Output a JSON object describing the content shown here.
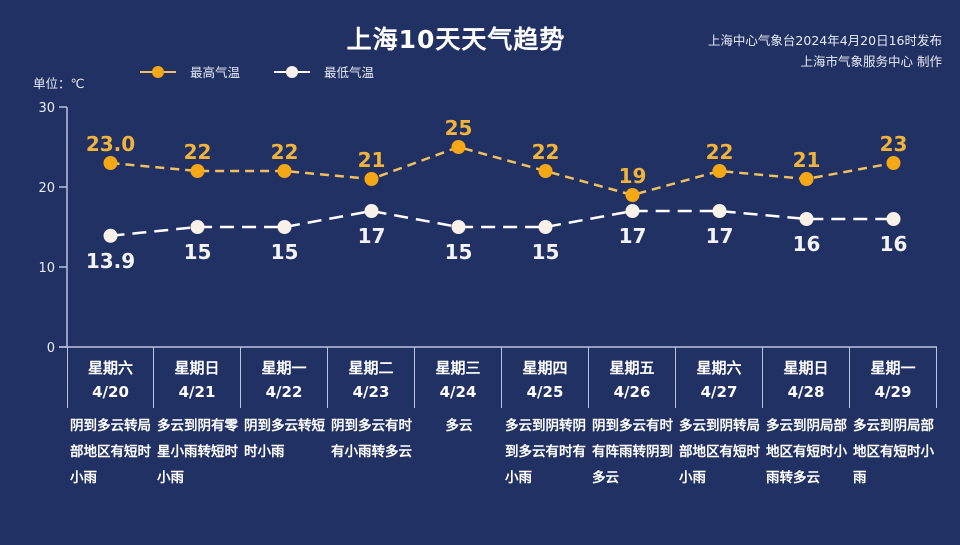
{
  "header": {
    "title": "上海10天天气趋势",
    "publisher_line1": "上海中心气象台2024年4月20日16时发布",
    "publisher_line2": "上海市气象服务中心 制作",
    "unit_label": "单位：℃"
  },
  "legend": [
    {
      "label": "最高气温",
      "color": "#f5a816",
      "icon": "orange-dot-line-icon"
    },
    {
      "label": "最低气温",
      "color": "#f8f1ea",
      "icon": "white-dot-line-icon"
    }
  ],
  "colors": {
    "background": "#223163",
    "axis": "#b9c3dc",
    "high": "#f5a816",
    "high_label": "#f0b43c",
    "low": "#f8f1ea"
  },
  "days": [
    {
      "weekday": "星期六",
      "date": "4/20",
      "desc": "阴到多云转局部地区有短时小雨"
    },
    {
      "weekday": "星期日",
      "date": "4/21",
      "desc": "多云到阴有零星小雨转短时小雨"
    },
    {
      "weekday": "星期一",
      "date": "4/22",
      "desc": "阴到多云转短时小雨"
    },
    {
      "weekday": "星期二",
      "date": "4/23",
      "desc": "阴到多云有时有小雨转多云"
    },
    {
      "weekday": "星期三",
      "date": "4/24",
      "desc": "多云"
    },
    {
      "weekday": "星期四",
      "date": "4/25",
      "desc": "多云到阴转阴到多云有时有小雨"
    },
    {
      "weekday": "星期五",
      "date": "4/26",
      "desc": "阴到多云有时有阵雨转阴到多云"
    },
    {
      "weekday": "星期六",
      "date": "4/27",
      "desc": "多云到阴转局部地区有短时小雨"
    },
    {
      "weekday": "星期日",
      "date": "4/28",
      "desc": "多云到阴局部地区有短时小雨转多云"
    },
    {
      "weekday": "星期一",
      "date": "4/29",
      "desc": "多云到阴局部地区有短时小雨"
    }
  ],
  "chart_data": {
    "type": "line",
    "title": "上海10天天气趋势",
    "xlabel": "",
    "ylabel": "单位：℃",
    "ylim": [
      0,
      30
    ],
    "yticks": [
      0,
      10,
      20,
      30
    ],
    "grid": false,
    "legend_position": "top",
    "categories": [
      "4/20",
      "4/21",
      "4/22",
      "4/23",
      "4/24",
      "4/25",
      "4/26",
      "4/27",
      "4/28",
      "4/29"
    ],
    "series": [
      {
        "name": "最高气温",
        "values": [
          23.0,
          22,
          22,
          21,
          25,
          22,
          19,
          22,
          21,
          23
        ],
        "labels": [
          "23.0",
          "22",
          "22",
          "21",
          "25",
          "22",
          "19",
          "22",
          "21",
          "23"
        ],
        "style": "dashed",
        "color": "#f5a816"
      },
      {
        "name": "最低气温",
        "values": [
          13.9,
          15,
          15,
          17,
          15,
          15,
          17,
          17,
          16,
          16
        ],
        "labels": [
          "13.9",
          "15",
          "15",
          "17",
          "15",
          "15",
          "17",
          "17",
          "16",
          "16"
        ],
        "style": "dashed",
        "color": "#f8f1ea"
      }
    ]
  }
}
